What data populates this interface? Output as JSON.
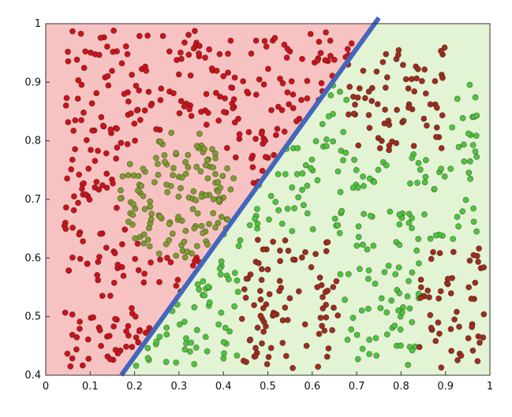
{
  "chart_data": {
    "type": "scatter",
    "title": "",
    "xlabel": "",
    "ylabel": "",
    "xlim": [
      0,
      1
    ],
    "ylim": [
      0.4,
      1
    ],
    "grid": false,
    "x_ticks": [
      "0",
      "0.1",
      "0.2",
      "0.3",
      "0.4",
      "0.5",
      "0.6",
      "0.7",
      "0.8",
      "0.9",
      "1"
    ],
    "y_ticks": [
      "0.4",
      "0.5",
      "0.6",
      "0.7",
      "0.8",
      "0.9",
      "1"
    ],
    "decision_boundary": {
      "from": [
        0.17,
        0.4
      ],
      "to": [
        0.75,
        1.01
      ]
    },
    "colors": {
      "left_region": "#f7c3c2",
      "right_region": "#e3f4d5",
      "boundary": "#4466bb",
      "red": "#c8141d",
      "dark_red": "#9b2e20",
      "green": "#4dc43f",
      "olive": "#7e9c33"
    },
    "series": [
      {
        "key": "red",
        "count": 330
      },
      {
        "key": "dark_red",
        "count": 215
      },
      {
        "key": "green",
        "count": 250
      },
      {
        "key": "olive",
        "count": 140
      }
    ]
  }
}
